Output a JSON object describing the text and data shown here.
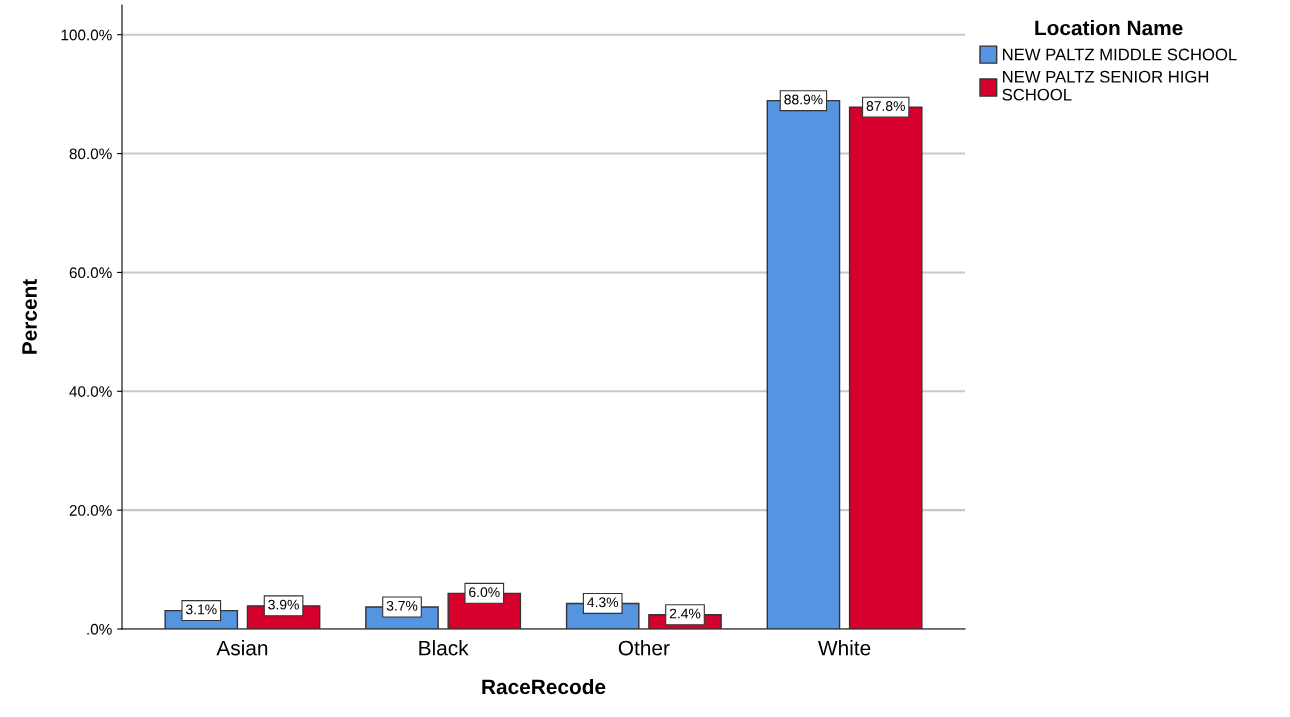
{
  "chart_data": {
    "type": "bar",
    "xlabel": "RaceRecode",
    "ylabel": "Percent",
    "legend_title": "Location Name",
    "categories": [
      "Asian",
      "Black",
      "Other",
      "White"
    ],
    "series": [
      {
        "name": "NEW PALTZ MIDDLE SCHOOL",
        "color": "#5594e0",
        "values": [
          3.1,
          3.7,
          4.3,
          88.9
        ],
        "value_labels": [
          "3.1%",
          "3.7%",
          "4.3%",
          "88.9%"
        ]
      },
      {
        "name": "NEW PALTZ SENIOR HIGH SCHOOL",
        "color": "#d5002c",
        "values": [
          3.9,
          6.0,
          2.4,
          87.8
        ],
        "value_labels": [
          "3.9%",
          "6.0%",
          "2.4%",
          "87.8%"
        ]
      }
    ],
    "ylim": [
      0,
      105
    ],
    "yticks": [
      {
        "value": 0,
        "label": ".0%"
      },
      {
        "value": 20,
        "label": "20.0%"
      },
      {
        "value": 40,
        "label": "40.0%"
      },
      {
        "value": 60,
        "label": "60.0%"
      },
      {
        "value": 80,
        "label": "80.0%"
      },
      {
        "value": 100,
        "label": "100.0%"
      }
    ],
    "grid": "y",
    "legend": "top right"
  }
}
